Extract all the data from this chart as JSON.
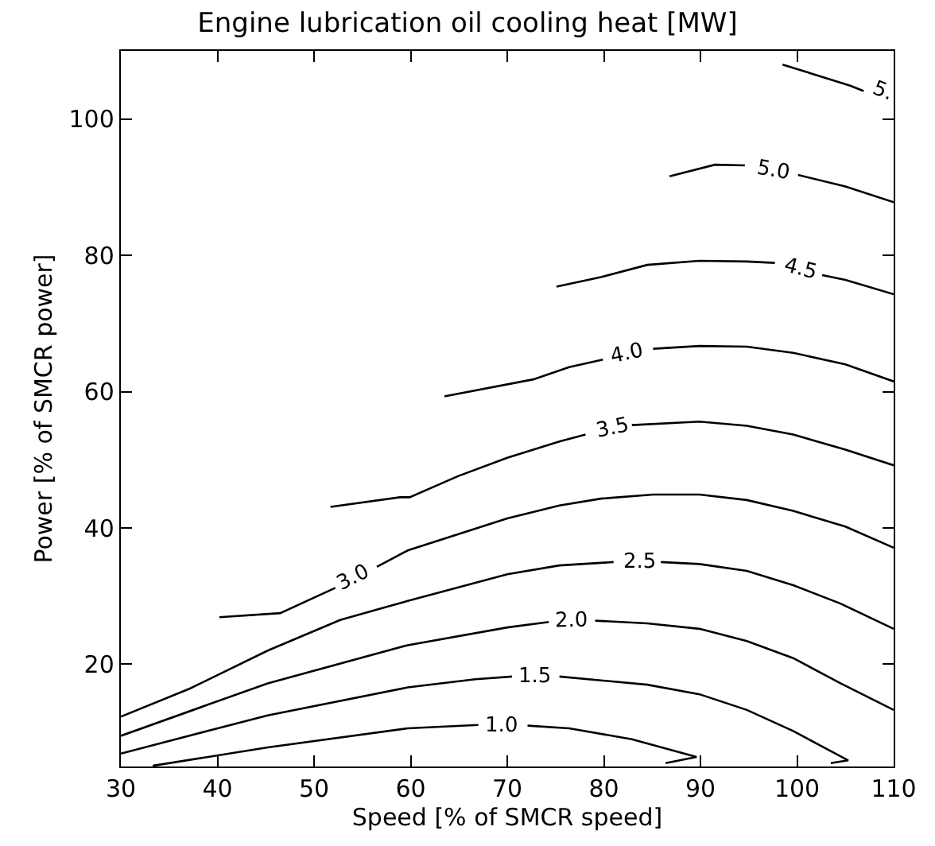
{
  "chart_data": {
    "type": "line",
    "title": "Engine lubrication oil cooling heat [MW]",
    "xlabel": "Speed [% of SMCR speed]",
    "ylabel": "Power [% of SMCR power]",
    "xlim": [
      30,
      110
    ],
    "xticks": [
      30,
      40,
      50,
      60,
      70,
      80,
      90,
      100,
      110
    ],
    "ylim": [
      5,
      110
    ],
    "yticks": [
      20,
      40,
      60,
      80,
      100
    ],
    "legend": false,
    "marker": "none",
    "line_style": "solid",
    "series": [
      {
        "name": "1.0",
        "color": "#000000",
        "x": [
          33.3,
          45.2,
          59.7,
          67.0,
          69.5,
          72.1,
          76.4,
          82.9,
          89.6,
          86.4
        ],
        "values": [
          5.1,
          7.8,
          10.6,
          11.1,
          null,
          11.0,
          10.6,
          9.0,
          6.4,
          5.5
        ]
      },
      {
        "name": "1.5",
        "color": "#000000",
        "x": [
          30,
          45.2,
          59.7,
          66.7,
          70.5,
          72.9,
          75.4,
          84.5,
          89.9,
          94.8,
          99.6,
          105.3,
          103.5
        ],
        "values": [
          6.9,
          12.5,
          16.6,
          17.8,
          18.2,
          null,
          18.2,
          17.0,
          15.6,
          13.3,
          10.2,
          5.9,
          5.5
        ]
      },
      {
        "name": "2.0",
        "color": "#000000",
        "x": [
          30,
          45.2,
          59.7,
          70.0,
          74.3,
          76.7,
          79.1,
          84.5,
          89.9,
          94.8,
          99.6,
          104.5,
          110
        ],
        "values": [
          9.5,
          17.2,
          22.8,
          25.4,
          26.2,
          null,
          26.4,
          26.0,
          25.2,
          23.4,
          20.9,
          17.2,
          13.3
        ]
      },
      {
        "name": "2.5",
        "color": "#000000",
        "x": [
          30,
          37.1,
          45.2,
          52.7,
          59.7,
          70,
          75.4,
          81.0,
          83.7,
          85.9,
          89.9,
          94.8,
          99.6,
          104.5,
          110
        ],
        "values": [
          12.3,
          16.4,
          22.0,
          26.5,
          29.3,
          33.2,
          34.5,
          35.0,
          null,
          35.0,
          34.7,
          33.7,
          31.6,
          28.9,
          25.2
        ]
      },
      {
        "name": "3.0",
        "color": "#000000",
        "x": [
          40.2,
          46.5,
          52.2,
          54.1,
          56.5,
          59.7,
          70,
          75.4,
          79.7,
          85.1,
          89.9,
          94.8,
          99.6,
          105,
          110
        ],
        "values": [
          26.9,
          27.5,
          31.2,
          null,
          34.3,
          36.7,
          41.4,
          43.3,
          44.3,
          44.9,
          44.9,
          44.1,
          42.5,
          40.2,
          37.1
        ]
      },
      {
        "name": "3.5",
        "color": "#000000",
        "x": [
          51.7,
          58.9,
          59.9,
          64.9,
          70,
          75.4,
          78.1,
          80.9,
          82.9,
          89.9,
          94.8,
          99.6,
          105,
          110
        ],
        "values": [
          43.1,
          44.5,
          44.5,
          47.6,
          50.3,
          52.7,
          53.7,
          null,
          55.1,
          55.6,
          55.0,
          53.7,
          51.5,
          49.2
        ]
      },
      {
        "name": "4.0",
        "color": "#000000",
        "x": [
          63.5,
          72.7,
          76.4,
          79.9,
          82.5,
          85.1,
          89.9,
          94.8,
          99.6,
          105,
          110
        ],
        "values": [
          59.3,
          61.8,
          63.6,
          64.7,
          null,
          66.3,
          66.7,
          66.6,
          65.7,
          64.0,
          61.5
        ]
      },
      {
        "name": "4.5",
        "color": "#000000",
        "x": [
          75.1,
          79.7,
          84.5,
          89.9,
          94.8,
          97.7,
          100.4,
          102.6,
          105,
          110
        ],
        "values": [
          75.4,
          76.8,
          78.6,
          79.2,
          79.1,
          78.9,
          null,
          77.1,
          76.4,
          74.3
        ]
      },
      {
        "name": "5.0",
        "color": "#000000",
        "x": [
          86.8,
          91.5,
          94.6,
          97.6,
          100.1,
          105,
          110
        ],
        "values": [
          91.6,
          93.3,
          93.2,
          null,
          91.8,
          90.1,
          87.8
        ]
      },
      {
        "name": "5.",
        "color": "#000000",
        "x": [
          98.5,
          105.5,
          106.9
        ],
        "values": [
          108.0,
          104.9,
          104.1
        ]
      }
    ]
  }
}
